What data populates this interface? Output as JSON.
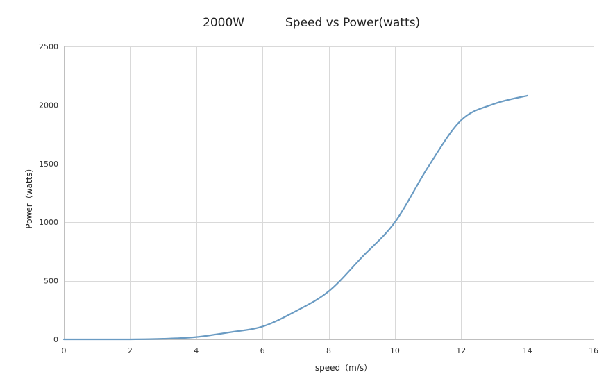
{
  "chart_data": {
    "type": "line",
    "title_left": "2000W",
    "title_right": "Speed vs Power(watts)",
    "xlabel": "speed（m/s）",
    "ylabel": "Power（watts）",
    "xlim": [
      0,
      16
    ],
    "ylim": [
      0,
      2500
    ],
    "xticks": [
      "0",
      "2",
      "4",
      "6",
      "8",
      "10",
      "12",
      "14",
      "16"
    ],
    "yticks": [
      "0",
      "500",
      "1000",
      "1500",
      "2000",
      "2500"
    ],
    "grid": true,
    "series_color": "#6a9bc3",
    "series": [
      {
        "x": [
          0,
          1,
          2,
          3,
          4,
          5,
          6,
          7,
          8,
          9,
          10,
          11,
          12,
          13,
          14
        ],
        "y": [
          0,
          0,
          0,
          5,
          20,
          60,
          110,
          240,
          410,
          700,
          1000,
          1470,
          1870,
          2010,
          2080
        ]
      }
    ]
  }
}
